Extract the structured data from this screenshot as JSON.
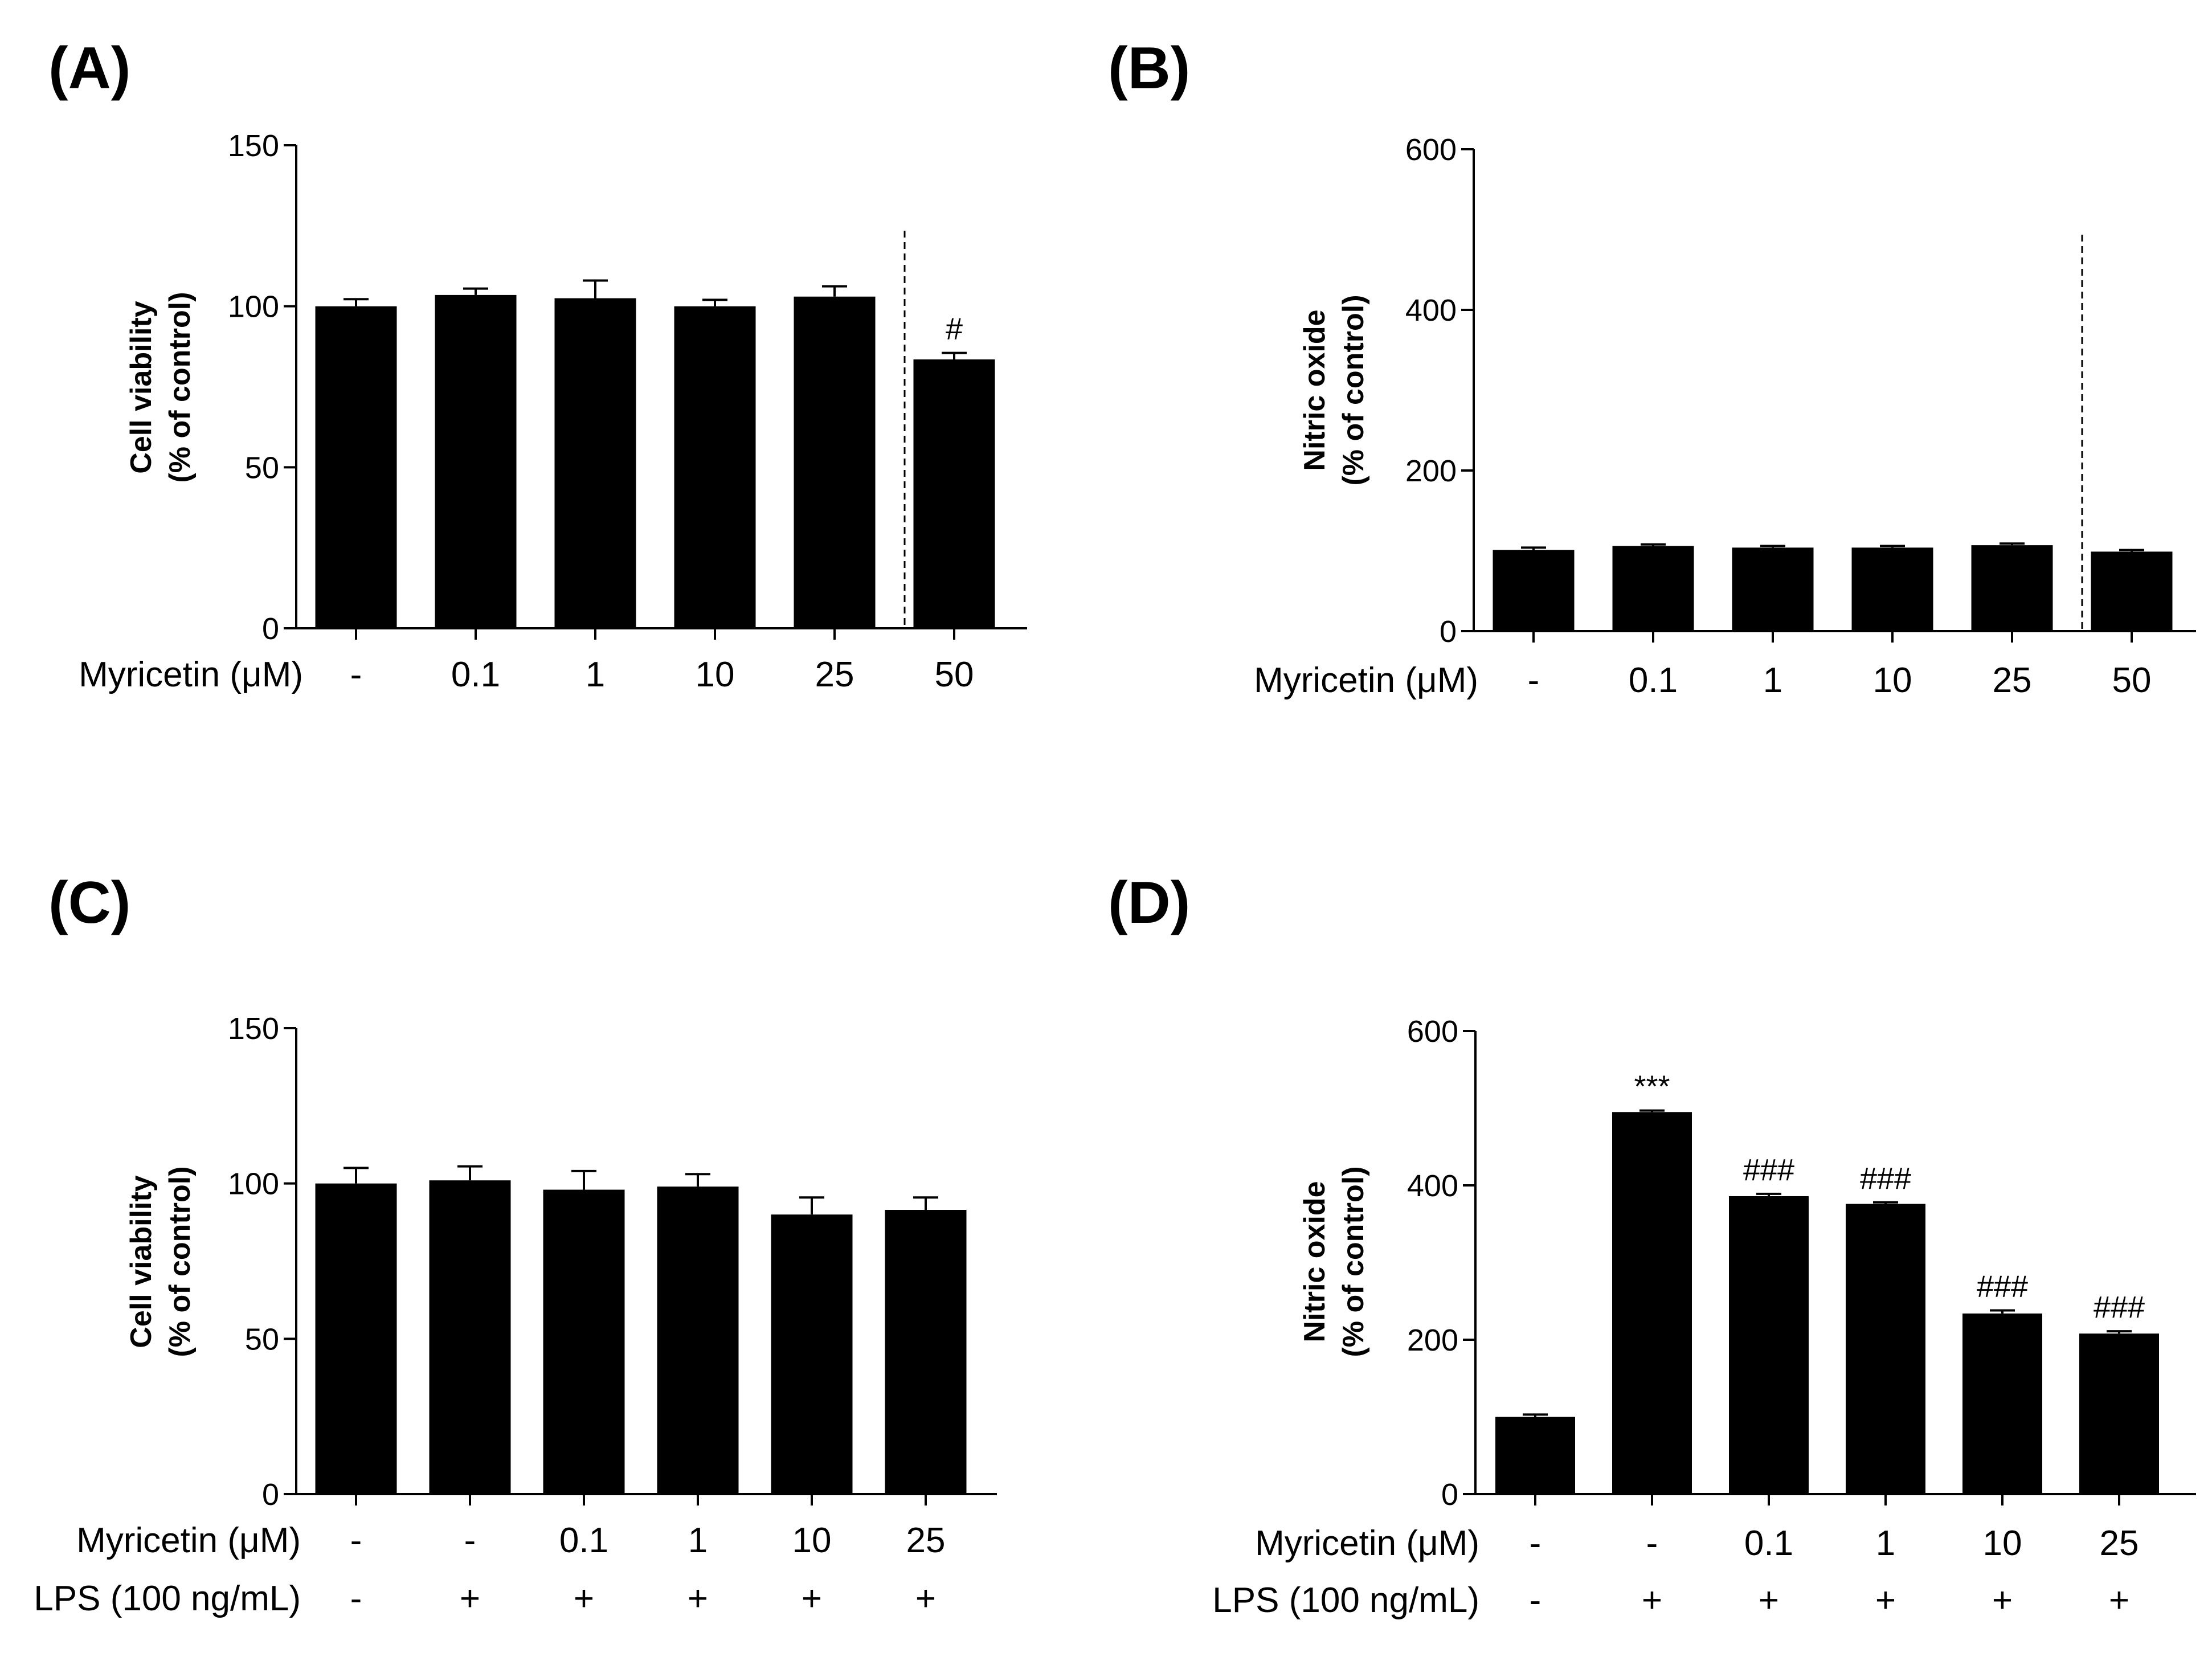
{
  "chart_data": [
    {
      "panel": "(A)",
      "type": "bar",
      "ylabel": [
        "Cell viability",
        "(% of control)"
      ],
      "ylim": [
        0,
        150
      ],
      "yticks": [
        0,
        50,
        100,
        150
      ],
      "rows": [
        {
          "label": "Myricetin (μM)",
          "values": [
            "-",
            "0.1",
            "1",
            "10",
            "25",
            "50"
          ]
        }
      ],
      "values": [
        100,
        103.5,
        102.5,
        100,
        103,
        83.5
      ],
      "errors": [
        2.2,
        2,
        5.5,
        2,
        3.2,
        2
      ],
      "annotations": [
        "",
        "",
        "",
        "",
        "",
        "#"
      ],
      "divider_after": 5
    },
    {
      "panel": "(B)",
      "type": "bar",
      "ylabel": [
        "Nitric oxide",
        "(% of control)"
      ],
      "ylim": [
        0,
        600
      ],
      "yticks": [
        0,
        200,
        400,
        600
      ],
      "rows": [
        {
          "label": "Myricetin (μM)",
          "values": [
            "-",
            "0.1",
            "1",
            "10",
            "25",
            "50"
          ]
        }
      ],
      "values": [
        101,
        106,
        104,
        104,
        107,
        99
      ],
      "errors": [
        3,
        2,
        2,
        2,
        2,
        2
      ],
      "annotations": [
        "",
        "",
        "",
        "",
        "",
        ""
      ],
      "divider_after": 5
    },
    {
      "panel": "(C)",
      "type": "bar",
      "ylabel": [
        "Cell viability",
        "(% of control)"
      ],
      "ylim": [
        0,
        150
      ],
      "yticks": [
        0,
        50,
        100,
        150
      ],
      "rows": [
        {
          "label": "Myricetin (μM)",
          "values": [
            "-",
            "-",
            "0.1",
            "1",
            "10",
            "25"
          ]
        },
        {
          "label": "LPS (100 ng/mL)",
          "values": [
            "-",
            "+",
            "+",
            "+",
            "+",
            "+"
          ]
        }
      ],
      "values": [
        100,
        101,
        98,
        99,
        90,
        91.5
      ],
      "errors": [
        5,
        4.5,
        6,
        4,
        5.5,
        4
      ],
      "annotations": [
        "",
        "",
        "",
        "",
        "",
        ""
      ],
      "divider_after": null
    },
    {
      "panel": "(D)",
      "type": "bar",
      "ylabel": [
        "Nitric oxide",
        "(% of control)"
      ],
      "ylim": [
        0,
        600
      ],
      "yticks": [
        0,
        200,
        400,
        600
      ],
      "rows": [
        {
          "label": "Myricetin (μM)",
          "values": [
            "-",
            "-",
            "0.1",
            "1",
            "10",
            "25"
          ]
        },
        {
          "label": "LPS (100 ng/mL)",
          "values": [
            "-",
            "+",
            "+",
            "+",
            "+",
            "+"
          ]
        }
      ],
      "values": [
        100,
        495,
        386,
        376,
        234,
        208
      ],
      "errors": [
        3,
        2,
        3,
        2,
        4,
        3
      ],
      "annotations": [
        "",
        "***",
        "###",
        "###",
        "###",
        "###"
      ],
      "divider_after": null
    }
  ]
}
